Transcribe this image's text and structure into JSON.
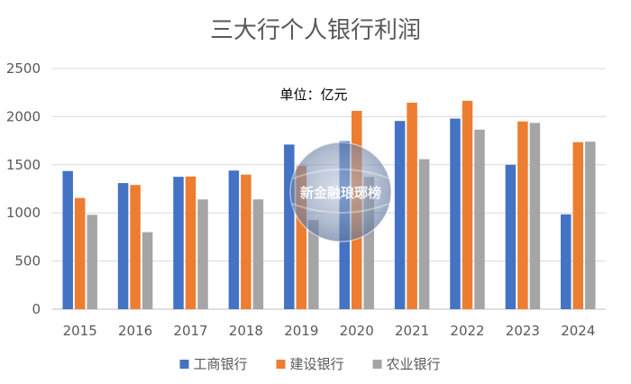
{
  "chart_data": {
    "type": "bar",
    "title": "三大行个人银行利润",
    "annotation": "单位：亿元",
    "watermark": "新金融琅琊榜",
    "categories": [
      "2015",
      "2016",
      "2017",
      "2018",
      "2019",
      "2020",
      "2021",
      "2022",
      "2023",
      "2024"
    ],
    "series": [
      {
        "name": "工商银行",
        "color": "#4472C4",
        "values": [
          1435,
          1310,
          1375,
          1440,
          1710,
          1745,
          1955,
          1980,
          1500,
          985
        ]
      },
      {
        "name": "建设银行",
        "color": "#ED7D31",
        "values": [
          1155,
          1290,
          1378,
          1398,
          1490,
          2060,
          2145,
          2165,
          1950,
          1735
        ]
      },
      {
        "name": "农业银行",
        "color": "#A5A5A5",
        "values": [
          980,
          800,
          1140,
          1140,
          925,
          1375,
          1558,
          1865,
          1935,
          1740
        ]
      }
    ],
    "yticks": [
      0,
      500,
      1000,
      1500,
      2000,
      2500
    ],
    "ylim": [
      0,
      2500
    ],
    "xlabel": "",
    "ylabel": "",
    "grid": true,
    "legend_position": "bottom"
  }
}
